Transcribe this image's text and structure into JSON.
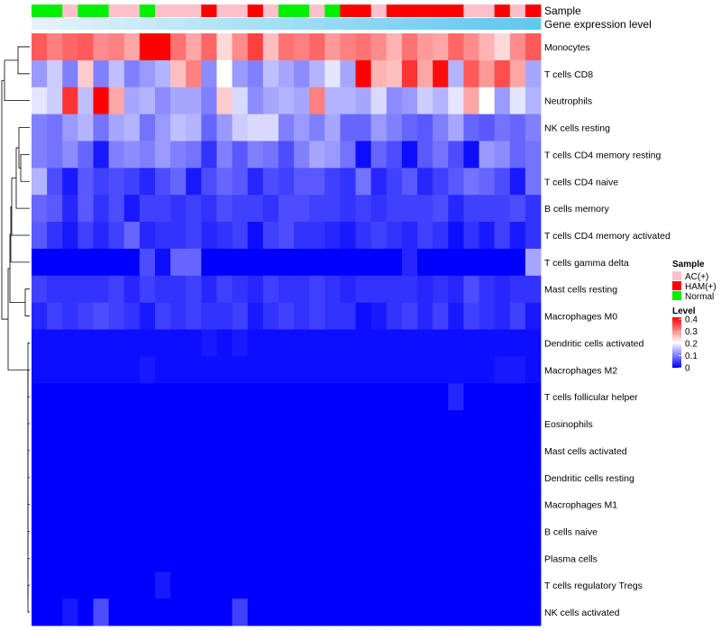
{
  "chart_data": {
    "type": "heatmap",
    "annotation_tracks": [
      "Sample",
      "Gene expression level"
    ],
    "sample_groups": [
      "N",
      "N",
      "A",
      "N",
      "N",
      "A",
      "A",
      "N",
      "A",
      "A",
      "A",
      "H",
      "A",
      "A",
      "H",
      "A",
      "N",
      "N",
      "A",
      "N",
      "H",
      "H",
      "A",
      "H",
      "H",
      "H",
      "H",
      "H",
      "A",
      "A",
      "H",
      "A",
      "H"
    ],
    "expression_gradient": [
      "#e3f3fb",
      "#5ec8ef"
    ],
    "rows": [
      "Monocytes",
      "T cells CD8",
      "Neutrophils",
      "NK cells resting",
      "T cells CD4 memory resting",
      "T cells CD4 naive",
      "B cells memory",
      "T cells CD4 memory activated",
      "T cells gamma delta",
      "Mast cells resting",
      "Macrophages M0",
      "Dendritic cells activated",
      "Macrophages M2",
      "T cells follicular helper",
      "Eosinophils",
      "Mast cells activated",
      "Dendritic cells resting",
      "Macrophages M1",
      "B cells naive",
      "Plasma cells",
      "T cells regulatory  Tregs",
      "NK cells activated"
    ],
    "values": [
      [
        0.33,
        0.3,
        0.32,
        0.33,
        0.29,
        0.3,
        0.27,
        0.4,
        0.4,
        0.31,
        0.27,
        0.32,
        0.23,
        0.29,
        0.35,
        0.25,
        0.31,
        0.3,
        0.32,
        0.28,
        0.3,
        0.31,
        0.29,
        0.26,
        0.31,
        0.28,
        0.27,
        0.32,
        0.29,
        0.26,
        0.23,
        0.29,
        0.33
      ],
      [
        0.12,
        0.16,
        0.1,
        0.24,
        0.1,
        0.15,
        0.1,
        0.12,
        0.14,
        0.25,
        0.3,
        0.11,
        0.2,
        0.12,
        0.1,
        0.15,
        0.13,
        0.11,
        0.14,
        0.18,
        0.13,
        0.4,
        0.26,
        0.25,
        0.36,
        0.27,
        0.39,
        0.14,
        0.33,
        0.28,
        0.34,
        0.27,
        0.13
      ],
      [
        0.18,
        0.16,
        0.36,
        0.15,
        0.4,
        0.27,
        0.13,
        0.14,
        0.11,
        0.13,
        0.13,
        0.1,
        0.24,
        0.17,
        0.11,
        0.13,
        0.14,
        0.13,
        0.3,
        0.14,
        0.14,
        0.13,
        0.17,
        0.11,
        0.12,
        0.16,
        0.14,
        0.18,
        0.27,
        0.2,
        0.12,
        0.18,
        0.14
      ],
      [
        0.1,
        0.09,
        0.12,
        0.14,
        0.09,
        0.13,
        0.14,
        0.09,
        0.12,
        0.15,
        0.14,
        0.08,
        0.12,
        0.16,
        0.17,
        0.17,
        0.1,
        0.12,
        0.1,
        0.13,
        0.08,
        0.08,
        0.12,
        0.1,
        0.08,
        0.07,
        0.1,
        0.13,
        0.08,
        0.07,
        0.09,
        0.08,
        0.1
      ],
      [
        0.1,
        0.09,
        0.11,
        0.08,
        0.02,
        0.1,
        0.11,
        0.1,
        0.12,
        0.1,
        0.09,
        0.04,
        0.1,
        0.07,
        0.1,
        0.09,
        0.06,
        0.1,
        0.13,
        0.12,
        0.09,
        0.01,
        0.08,
        0.06,
        0.01,
        0.07,
        0.09,
        0.06,
        0.01,
        0.12,
        0.11,
        0.08,
        0.09
      ],
      [
        0.14,
        0.06,
        0.02,
        0.07,
        0.05,
        0.06,
        0.05,
        0.03,
        0.06,
        0.08,
        0.02,
        0.06,
        0.08,
        0.07,
        0.03,
        0.06,
        0.05,
        0.07,
        0.07,
        0.05,
        0.04,
        0.09,
        0.03,
        0.05,
        0.07,
        0.03,
        0.05,
        0.07,
        0.09,
        0.08,
        0.06,
        0.02,
        0.09
      ],
      [
        0.08,
        0.07,
        0.03,
        0.07,
        0.04,
        0.06,
        0.02,
        0.05,
        0.05,
        0.04,
        0.05,
        0.04,
        0.06,
        0.05,
        0.05,
        0.04,
        0.06,
        0.06,
        0.05,
        0.05,
        0.04,
        0.05,
        0.04,
        0.05,
        0.05,
        0.05,
        0.06,
        0.03,
        0.05,
        0.05,
        0.05,
        0.06,
        0.04
      ],
      [
        0.07,
        0.04,
        0.02,
        0.05,
        0.03,
        0.05,
        0.08,
        0.03,
        0.04,
        0.04,
        0.05,
        0.03,
        0.04,
        0.05,
        0.01,
        0.05,
        0.06,
        0.04,
        0.04,
        0.03,
        0.02,
        0.04,
        0.05,
        0.04,
        0.03,
        0.05,
        0.04,
        0.01,
        0.04,
        0.02,
        0.05,
        0.02,
        0.04
      ],
      [
        0.0,
        0.0,
        0.0,
        0.0,
        0.0,
        0.0,
        0.0,
        0.06,
        0.01,
        0.08,
        0.08,
        0.0,
        0.0,
        0.0,
        0.0,
        0.0,
        0.0,
        0.0,
        0.0,
        0.0,
        0.0,
        0.0,
        0.0,
        0.0,
        0.03,
        0.0,
        0.0,
        0.0,
        0.0,
        0.0,
        0.0,
        0.0,
        0.13
      ],
      [
        0.05,
        0.04,
        0.04,
        0.04,
        0.04,
        0.05,
        0.03,
        0.05,
        0.04,
        0.04,
        0.05,
        0.03,
        0.05,
        0.04,
        0.03,
        0.05,
        0.04,
        0.04,
        0.05,
        0.04,
        0.03,
        0.04,
        0.04,
        0.04,
        0.04,
        0.03,
        0.04,
        0.03,
        0.06,
        0.04,
        0.03,
        0.04,
        0.04
      ],
      [
        0.03,
        0.05,
        0.04,
        0.05,
        0.06,
        0.05,
        0.04,
        0.02,
        0.05,
        0.04,
        0.05,
        0.04,
        0.04,
        0.05,
        0.02,
        0.04,
        0.05,
        0.04,
        0.05,
        0.04,
        0.04,
        0.01,
        0.02,
        0.04,
        0.05,
        0.03,
        0.05,
        0.02,
        0.05,
        0.04,
        0.03,
        0.05,
        0.02
      ],
      [
        0.01,
        0.01,
        0.01,
        0.01,
        0.01,
        0.01,
        0.01,
        0.01,
        0.01,
        0.01,
        0.01,
        0.02,
        0.01,
        0.02,
        0.01,
        0.01,
        0.01,
        0.01,
        0.01,
        0.01,
        0.01,
        0.01,
        0.01,
        0.01,
        0.01,
        0.01,
        0.01,
        0.01,
        0.01,
        0.01,
        0.01,
        0.01,
        0.01
      ],
      [
        0.01,
        0.01,
        0.01,
        0.01,
        0.01,
        0.01,
        0.01,
        0.02,
        0.01,
        0.01,
        0.01,
        0.01,
        0.01,
        0.01,
        0.01,
        0.01,
        0.01,
        0.01,
        0.01,
        0.01,
        0.01,
        0.01,
        0.01,
        0.01,
        0.01,
        0.01,
        0.01,
        0.01,
        0.01,
        0.01,
        0.02,
        0.02,
        0.01
      ],
      [
        0.0,
        0.0,
        0.0,
        0.0,
        0.0,
        0.0,
        0.0,
        0.0,
        0.0,
        0.0,
        0.0,
        0.0,
        0.0,
        0.0,
        0.0,
        0.0,
        0.0,
        0.0,
        0.0,
        0.0,
        0.0,
        0.0,
        0.0,
        0.0,
        0.0,
        0.0,
        0.0,
        0.03,
        0.0,
        0.0,
        0.0,
        0.0,
        0.0
      ],
      [
        0.0,
        0.0,
        0.0,
        0.0,
        0.0,
        0.0,
        0.0,
        0.0,
        0.0,
        0.0,
        0.0,
        0.0,
        0.0,
        0.0,
        0.0,
        0.0,
        0.0,
        0.0,
        0.0,
        0.0,
        0.0,
        0.0,
        0.0,
        0.0,
        0.0,
        0.0,
        0.0,
        0.0,
        0.0,
        0.0,
        0.0,
        0.0,
        0.0
      ],
      [
        0.0,
        0.0,
        0.0,
        0.0,
        0.0,
        0.0,
        0.0,
        0.0,
        0.0,
        0.0,
        0.0,
        0.0,
        0.0,
        0.0,
        0.0,
        0.0,
        0.0,
        0.0,
        0.0,
        0.0,
        0.0,
        0.0,
        0.0,
        0.0,
        0.0,
        0.0,
        0.0,
        0.0,
        0.0,
        0.0,
        0.0,
        0.0,
        0.0
      ],
      [
        0.0,
        0.0,
        0.0,
        0.0,
        0.0,
        0.0,
        0.0,
        0.0,
        0.0,
        0.0,
        0.0,
        0.0,
        0.0,
        0.0,
        0.0,
        0.0,
        0.0,
        0.0,
        0.0,
        0.0,
        0.0,
        0.0,
        0.0,
        0.0,
        0.0,
        0.0,
        0.0,
        0.0,
        0.0,
        0.0,
        0.0,
        0.0,
        0.0
      ],
      [
        0.0,
        0.0,
        0.0,
        0.0,
        0.0,
        0.0,
        0.0,
        0.0,
        0.0,
        0.0,
        0.0,
        0.0,
        0.0,
        0.0,
        0.0,
        0.0,
        0.0,
        0.0,
        0.0,
        0.0,
        0.0,
        0.0,
        0.0,
        0.0,
        0.0,
        0.0,
        0.0,
        0.0,
        0.0,
        0.0,
        0.0,
        0.0,
        0.0
      ],
      [
        0.0,
        0.0,
        0.0,
        0.0,
        0.0,
        0.0,
        0.0,
        0.0,
        0.0,
        0.0,
        0.0,
        0.0,
        0.0,
        0.0,
        0.0,
        0.0,
        0.0,
        0.0,
        0.0,
        0.0,
        0.0,
        0.0,
        0.0,
        0.0,
        0.0,
        0.0,
        0.0,
        0.0,
        0.0,
        0.0,
        0.0,
        0.0,
        0.0
      ],
      [
        0.0,
        0.0,
        0.0,
        0.0,
        0.0,
        0.0,
        0.0,
        0.0,
        0.0,
        0.0,
        0.0,
        0.0,
        0.0,
        0.0,
        0.0,
        0.0,
        0.0,
        0.0,
        0.0,
        0.0,
        0.0,
        0.0,
        0.0,
        0.0,
        0.0,
        0.0,
        0.0,
        0.0,
        0.0,
        0.0,
        0.0,
        0.0,
        0.0
      ],
      [
        0.0,
        0.0,
        0.0,
        0.0,
        0.0,
        0.0,
        0.0,
        0.0,
        0.02,
        0.0,
        0.0,
        0.0,
        0.0,
        0.0,
        0.0,
        0.0,
        0.0,
        0.0,
        0.0,
        0.0,
        0.0,
        0.0,
        0.0,
        0.0,
        0.0,
        0.0,
        0.0,
        0.0,
        0.0,
        0.0,
        0.0,
        0.0,
        0.0
      ],
      [
        0.0,
        0.0,
        0.02,
        0.0,
        0.06,
        0.0,
        0.0,
        0.0,
        0.0,
        0.0,
        0.0,
        0.0,
        0.0,
        0.05,
        0.0,
        0.0,
        0.0,
        0.0,
        0.0,
        0.0,
        0.0,
        0.0,
        0.0,
        0.0,
        0.0,
        0.0,
        0.0,
        0.0,
        0.0,
        0.0,
        0.0,
        0.0,
        0.0
      ]
    ],
    "legend": {
      "sample_title": "Sample",
      "groups": [
        {
          "key": "A",
          "label": "AC(+)",
          "color": "#ffc0cb"
        },
        {
          "key": "H",
          "label": "HAM(+)",
          "color": "#ff0000"
        },
        {
          "key": "N",
          "label": "Normal",
          "color": "#00ee00"
        }
      ],
      "level_title": "Level",
      "level_ticks": [
        "0.4",
        "0.3",
        "0.2",
        "0.1",
        "0"
      ],
      "level_range": [
        0,
        0.4
      ]
    },
    "color_scale": [
      "#0000ff",
      "#ffffff",
      "#ff0000"
    ]
  }
}
